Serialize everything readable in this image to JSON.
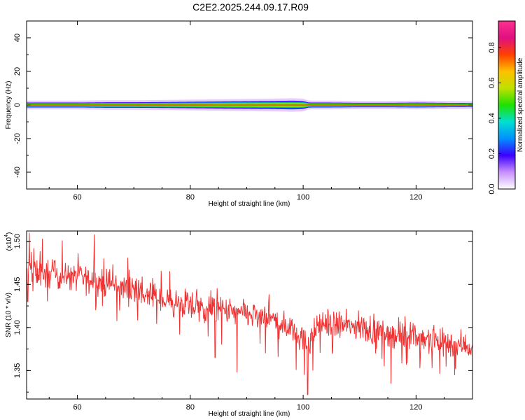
{
  "figure_title": "C2E2.2025.244.09.17.R09",
  "colors": {
    "snr_line": "#f03232",
    "background": "#ffffff",
    "colormap": [
      "#ffffff",
      "#c890ff",
      "#3c00ff",
      "#0090ff",
      "#00e0d0",
      "#20e000",
      "#c0e000",
      "#ffc000",
      "#ff4000",
      "#e01080",
      "#ff3090"
    ]
  },
  "chart_data": [
    {
      "type": "heatmap",
      "title": "",
      "xlabel": "Height of straight line (km)",
      "ylabel": "Frequency (Hz)",
      "xlim": [
        51,
        130
      ],
      "ylim": [
        -50,
        50
      ],
      "x_ticks": [
        60,
        80,
        100,
        120
      ],
      "x_tick_labels": [
        "60",
        "80",
        "100",
        "120"
      ],
      "y_ticks": [
        40,
        20,
        0,
        -20,
        -40
      ],
      "y_tick_labels": [
        "40",
        "20",
        "0",
        "-20",
        "-40"
      ],
      "description": "Narrow spectral line centered at 0 Hz; broadens to about ±3 Hz between 85 and 100 km",
      "center_frequency": 0,
      "line_profile": {
        "height_km": [
          51,
          55,
          60,
          65,
          70,
          75,
          80,
          85,
          90,
          95,
          98,
          100,
          101,
          105,
          110,
          115,
          120,
          125,
          130
        ],
        "half_width_hz": [
          1.8,
          1.8,
          1.8,
          2.0,
          2.0,
          2.2,
          2.4,
          2.6,
          2.8,
          3.0,
          3.2,
          3.0,
          1.8,
          1.8,
          1.6,
          1.6,
          1.8,
          1.6,
          1.5
        ]
      },
      "colorbar": {
        "label": "Normalized spectral amplitude",
        "range": [
          0.0,
          0.95
        ],
        "ticks": [
          0.0,
          0.2,
          0.4,
          0.6,
          0.8
        ],
        "tick_labels": [
          "0.0",
          "0.2",
          "0.4",
          "0.6",
          "0.8"
        ]
      }
    },
    {
      "type": "line",
      "title": "",
      "xlabel": "Height of straight line (km)",
      "ylabel": "SNR (10 * v/v)",
      "y_multiplier_base": "(x10",
      "y_multiplier_exp": "4",
      "y_multiplier_close": ")",
      "xlim": [
        51,
        130
      ],
      "ylim": [
        1.317,
        1.512
      ],
      "x_ticks": [
        60,
        80,
        100,
        120
      ],
      "x_tick_labels": [
        "60",
        "80",
        "100",
        "120"
      ],
      "y_ticks": [
        1.35,
        1.4,
        1.45,
        1.5
      ],
      "y_tick_labels": [
        "1.35",
        "1.40",
        "1.45",
        "1.50"
      ],
      "series": [
        {
          "name": "SNR",
          "trend_x": [
            51,
            55,
            60,
            65,
            70,
            75,
            80,
            85,
            90,
            95,
            99,
            100.5,
            101.5,
            103,
            110,
            115,
            120,
            125,
            130
          ],
          "trend_y": [
            1.465,
            1.462,
            1.458,
            1.452,
            1.443,
            1.432,
            1.425,
            1.42,
            1.415,
            1.408,
            1.395,
            1.38,
            1.39,
            1.405,
            1.4,
            1.393,
            1.39,
            1.383,
            1.378
          ],
          "noise_amplitude": 0.018,
          "sample_step_km": 0.08,
          "dips": [
            {
              "x": 100.8,
              "y": 1.322
            },
            {
              "x": 100.2,
              "y": 1.345
            },
            {
              "x": 101.7,
              "y": 1.35
            },
            {
              "x": 84.4,
              "y": 1.365
            },
            {
              "x": 88.3,
              "y": 1.348
            },
            {
              "x": 127.0,
              "y": 1.352
            },
            {
              "x": 51.2,
              "y": 1.43
            }
          ],
          "peaks": [
            {
              "x": 51.5,
              "y": 1.51
            },
            {
              "x": 63.0,
              "y": 1.508
            },
            {
              "x": 53.8,
              "y": 1.503
            },
            {
              "x": 57.3,
              "y": 1.501
            }
          ]
        }
      ]
    }
  ]
}
